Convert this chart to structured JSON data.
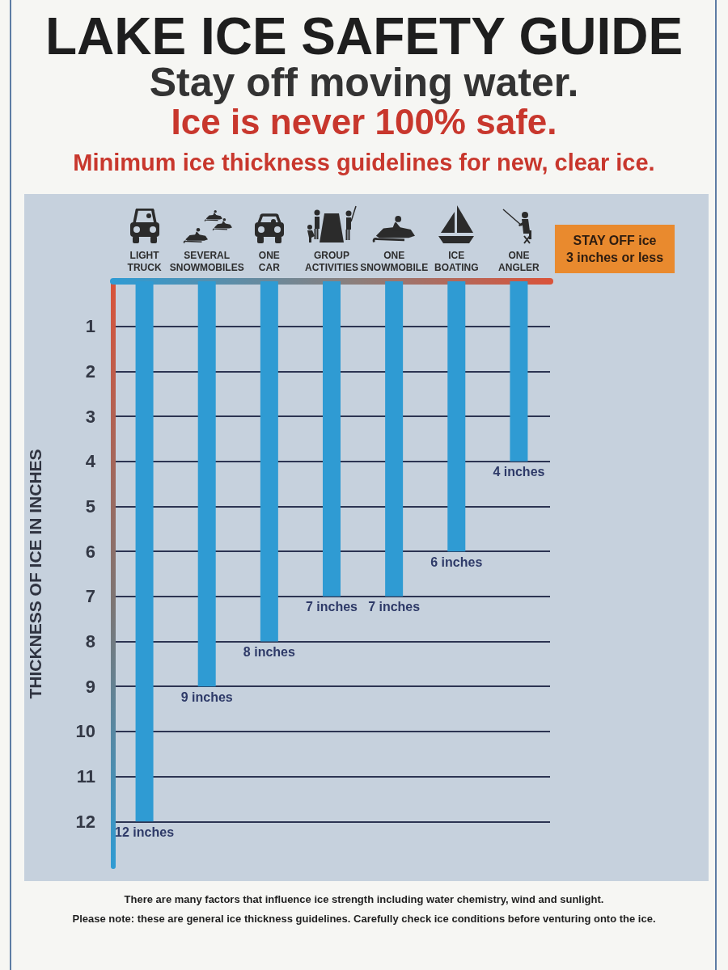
{
  "chart_data": {
    "type": "bar",
    "title": "LAKE ICE SAFETY GUIDE",
    "subtitle": "Stay off moving water.",
    "ylabel": "THICKNESS OF ICE IN INCHES",
    "categories": [
      "LIGHT TRUCK",
      "SEVERAL SNOWMOBILES",
      "ONE CAR",
      "GROUP ACTIVITIES",
      "ONE SNOWMOBILE",
      "ICE BOATING",
      "ONE ANGLER"
    ],
    "values": [
      12,
      9,
      8,
      7,
      7,
      6,
      4
    ],
    "value_labels": [
      "12 inches",
      "9 inches",
      "8 inches",
      "7 inches",
      "7 inches",
      "6 inches",
      "4 inches"
    ],
    "color": "#2f9bd3",
    "ylim": [
      13,
      0
    ],
    "yticks": [
      1,
      2,
      3,
      4,
      5,
      6,
      7,
      8,
      9,
      10,
      11,
      12
    ],
    "grid": "y",
    "annotations": [
      "Ice is never 100% safe.",
      "Minimum ice thickness guidelines for new, clear ice.",
      "STAY OFF ice",
      "3 inches or less",
      "There are many factors that influence ice strength including water chemistry, wind and sunlight.",
      "Please note: these are general ice thickness guidelines. Carefully check ice conditions before venturing onto the ice."
    ]
  }
}
